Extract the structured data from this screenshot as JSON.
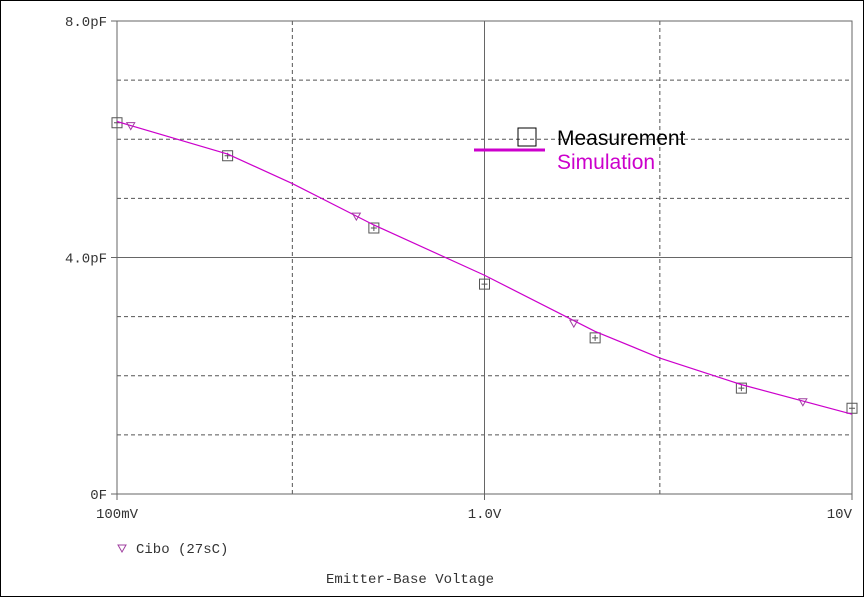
{
  "chart_data": {
    "type": "line",
    "x_scale": "log",
    "xlabel": "Emitter-Base Voltage",
    "xlim": [
      0.1,
      10
    ],
    "xticks": [
      {
        "value": 0.1,
        "label": "100mV"
      },
      {
        "value": 1,
        "label": "1.0V"
      },
      {
        "value": 10,
        "label": "10V"
      }
    ],
    "xminor_ticks": [
      0.3,
      3
    ],
    "ylim": [
      0,
      8
    ],
    "yticks": [
      {
        "value": 0,
        "label": "0F"
      },
      {
        "value": 4,
        "label": "4.0pF"
      },
      {
        "value": 8,
        "label": "8.0pF"
      }
    ],
    "yminor_ticks": [
      1,
      2,
      3,
      5,
      6,
      7
    ],
    "grid": true,
    "series": [
      {
        "name": "Measurement",
        "marker": "square",
        "color": "#555555",
        "x": [
          0.1,
          0.2,
          0.5,
          1,
          2,
          5,
          10
        ],
        "values": [
          6.28,
          5.72,
          4.5,
          3.55,
          2.64,
          1.79,
          1.45
        ]
      },
      {
        "name": "Simulation",
        "marker": "none",
        "color": "#cc00cc",
        "x": [
          0.1,
          0.2,
          0.3,
          0.5,
          1,
          2,
          3,
          5,
          10
        ],
        "values": [
          6.3,
          5.75,
          5.25,
          4.55,
          3.7,
          2.75,
          2.3,
          1.85,
          1.35
        ]
      },
      {
        "name": "Cibo (27sC)",
        "marker": "triangle",
        "color": "#a040a0",
        "x": [
          0.109,
          0.448,
          1.75,
          7.35
        ],
        "values": [
          6.23,
          4.7,
          2.89,
          1.56
        ]
      }
    ]
  }
}
